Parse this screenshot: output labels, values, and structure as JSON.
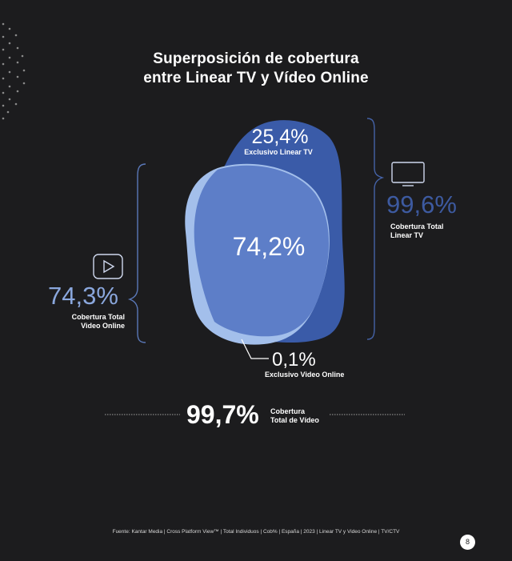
{
  "title": {
    "line1": "Superposición de cobertura",
    "line2": "entre Linear TV y Vídeo Online"
  },
  "linear_tv": {
    "icon": "tv-icon",
    "value": "99,6%",
    "label_line1": "Cobertura Total",
    "label_line2": "Linear TV",
    "color": "#3d5aa0"
  },
  "video_online": {
    "icon": "play-icon",
    "value": "74,3%",
    "label_line1": "Cobertura Total",
    "label_line2": "Video Online",
    "color": "#8aa7dd"
  },
  "exclusive_tv": {
    "value": "25,4%",
    "label": "Exclusivo Linear TV"
  },
  "overlap": {
    "value": "74,2%"
  },
  "exclusive_video": {
    "value": "0,1%",
    "label": "Exclusivo Video Online"
  },
  "total": {
    "value": "99,7%",
    "label_line1": "Cobertura",
    "label_line2": "Total de Vídeo"
  },
  "footer": "Fuente: Kantar Media | Cross Platform View™ | Total Individuos | Cob% | España | 2023 | Linear TV y Video Online | TV/CTV",
  "page_number": "8",
  "colors": {
    "background": "#1c1c1e",
    "linear_tv_blob": "#3a5ba8",
    "video_blob": "#a3bfeb",
    "overlap_blob": "#5d7ec8"
  }
}
